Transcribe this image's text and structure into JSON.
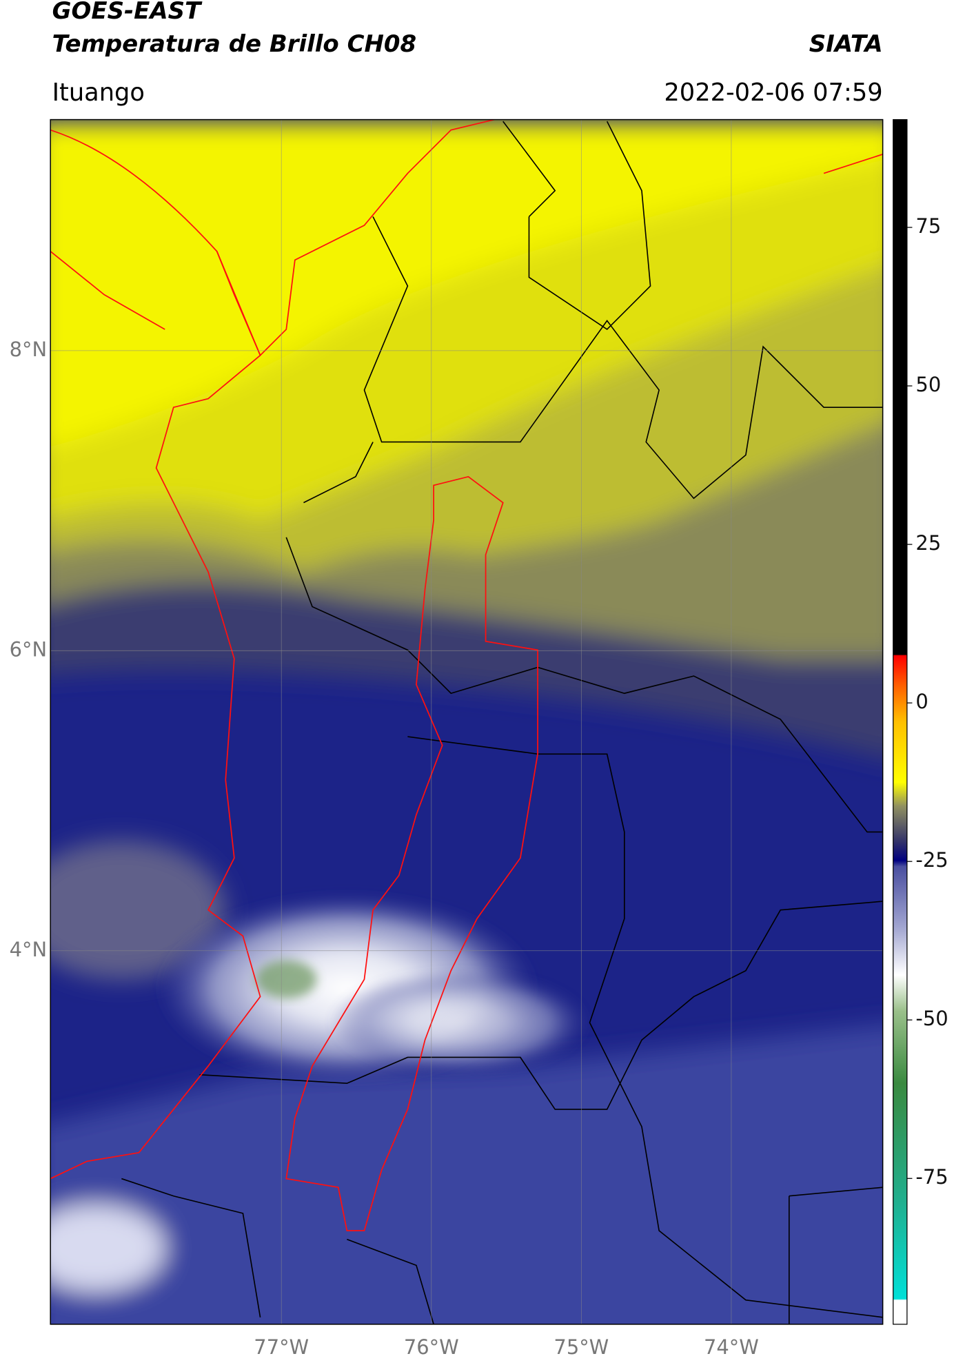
{
  "header": {
    "title": "GOES-EAST",
    "subtitle": "Temperatura de Brillo CH08",
    "source": "SIATA",
    "location": "Ituango",
    "datetime": "2022-02-06 07:59"
  },
  "map": {
    "xlim": [
      -78.54,
      -72.99
    ],
    "ylim": [
      1.51,
      9.54
    ],
    "xticks": [
      {
        "value": -77,
        "label": "77°W"
      },
      {
        "value": -76,
        "label": "76°W"
      },
      {
        "value": -75,
        "label": "75°W"
      },
      {
        "value": -74,
        "label": "74°W"
      }
    ],
    "yticks": [
      {
        "value": 4,
        "label": "4°N"
      },
      {
        "value": 6,
        "label": "6°N"
      },
      {
        "value": 8,
        "label": "8°N"
      }
    ]
  },
  "colorbar": {
    "lim": [
      -98,
      92
    ],
    "ticks": [
      -75,
      -50,
      -25,
      0,
      25,
      50,
      75
    ]
  }
}
